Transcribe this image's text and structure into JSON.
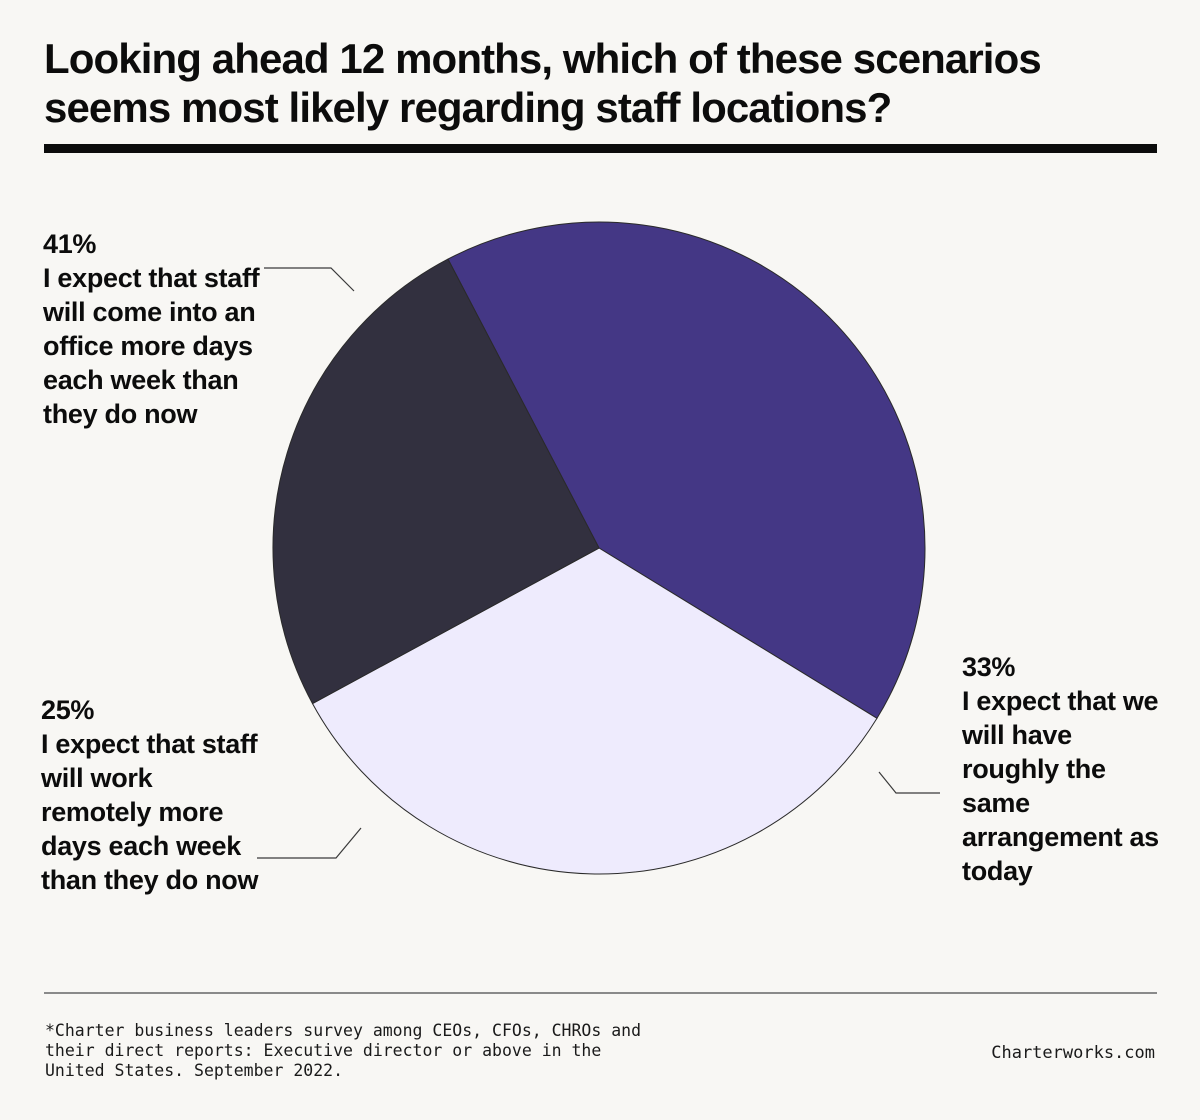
{
  "title_lines": [
    "Looking ahead 12 months, which of these scenarios",
    "seems most likely regarding staff locations?"
  ],
  "chart_data": {
    "type": "pie",
    "title": "Looking ahead 12 months, which of these scenarios seems most likely regarding staff locations?",
    "slices": [
      {
        "value": 41,
        "percent_label": "41%",
        "label": "I expect that staff will come into an office more days each week than they do now",
        "color": "#443785"
      },
      {
        "value": 33,
        "percent_label": "33%",
        "label": "I expect that we will have roughly the same arrangement as today",
        "color": "#eeebfd"
      },
      {
        "value": 25,
        "percent_label": "25%",
        "label": "I expect that staff will work remotely more days each week than they do now",
        "color": "#32303f"
      }
    ]
  },
  "footnote_lines": [
    "*Charter business leaders survey among CEOs, CFOs, CHROs and",
    "their direct reports: Executive director or above in the",
    "United States. September 2022."
  ],
  "brand": "Charterworks.com"
}
